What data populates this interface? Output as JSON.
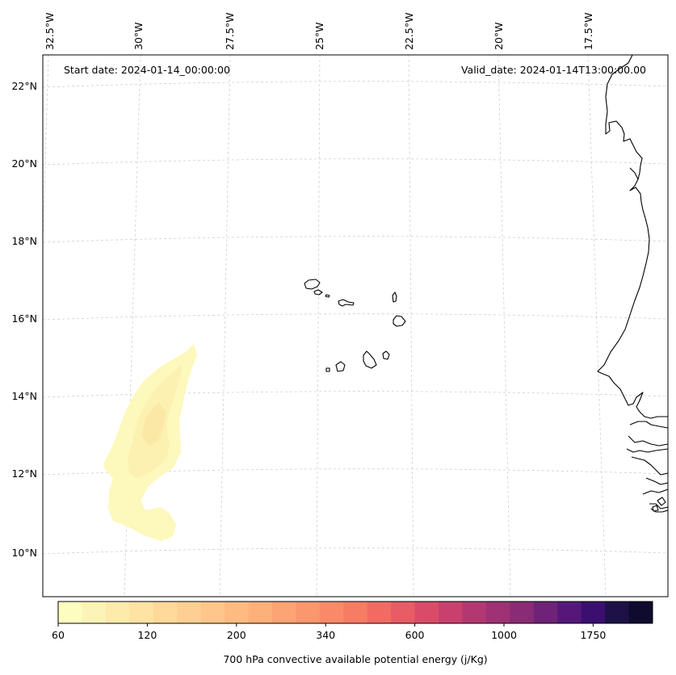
{
  "map": {
    "start_label": "Start date: 2024-01-14_00:00:00",
    "valid_label": "Valid_date: 2024-01-14T13:00:00.00",
    "lon_labels": [
      "32.5°W",
      "30°W",
      "27.5°W",
      "25°W",
      "22.5°W",
      "20°W",
      "17.5°W"
    ],
    "lat_labels": [
      "22°N",
      "20°N",
      "18°N",
      "16°N",
      "14°N",
      "12°N",
      "10°N"
    ],
    "gridlines": true
  },
  "colorbar": {
    "title": "700 hPa convective available potential energy (j/Kg)",
    "tick_labels": [
      "60",
      "120",
      "200",
      "340",
      "600",
      "1000",
      "1750"
    ],
    "colors": [
      "#fcfdbf",
      "#fcf4b6",
      "#fdebac",
      "#fee3a3",
      "#fed99a",
      "#fecf92",
      "#fec68a",
      "#febb81",
      "#fdb07a",
      "#fca473",
      "#fb976d",
      "#f98a68",
      "#f67d64",
      "#f06c63",
      "#e75c65",
      "#d94c69",
      "#c8406e",
      "#b33872",
      "#9e3274",
      "#8a2b76",
      "#6e2378",
      "#55187a",
      "#3b0f70",
      "#1d1147",
      "#0e0b2e"
    ]
  },
  "chart_data": {
    "type": "heatmap",
    "variable": "700 hPa convective available potential energy (j/Kg)",
    "lon_range": [
      -33,
      -15.8
    ],
    "lat_range": [
      9,
      22.5
    ],
    "colorbar_ticks": [
      60,
      120,
      200,
      340,
      600,
      1000,
      1750
    ],
    "cape_region": {
      "approx_max": 80
    }
  }
}
